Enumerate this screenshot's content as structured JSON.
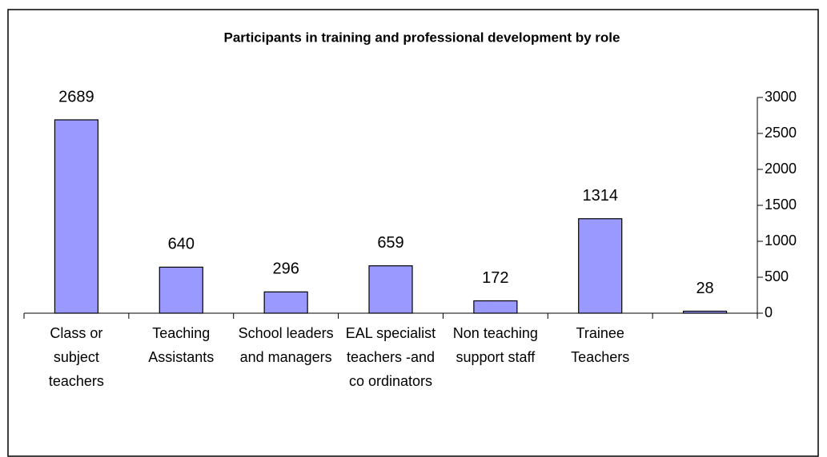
{
  "chart_data": {
    "type": "bar",
    "title": "Participants in training and professional development by role",
    "categories": [
      "Class or subject teachers",
      "Teaching Assistants",
      "School leaders and managers",
      "EAL specialist teachers -and co ordinators",
      "Non teaching support staff",
      "Trainee Teachers",
      null
    ],
    "values": [
      2689,
      640,
      296,
      659,
      172,
      1314,
      28
    ],
    "color": "#9999ff",
    "ylim": [
      0,
      3000
    ],
    "yticks": [
      0,
      500,
      1000,
      1500,
      2000,
      2500,
      3000
    ],
    "y_axis_side": "right",
    "grid": false
  }
}
